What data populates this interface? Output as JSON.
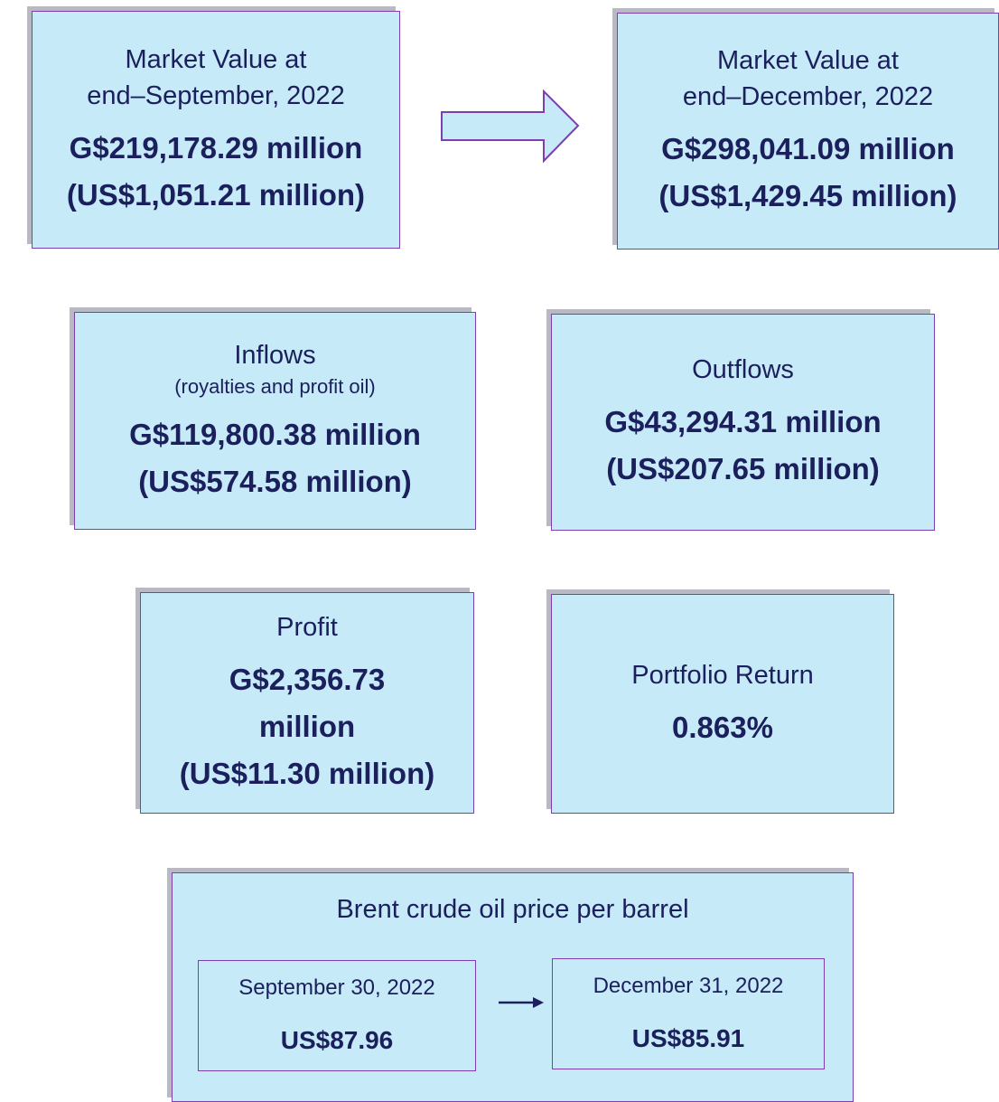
{
  "boxes": [
    {
      "title": [
        "Market Value at",
        "end–September, 2022"
      ],
      "values": [
        "G$219,178.29 million",
        "(US$1,051.21 million)"
      ]
    },
    {
      "title": [
        "Market Value at",
        "end–December, 2022"
      ],
      "values": [
        "G$298,041.09 million",
        "(US$1,429.45 million)"
      ]
    },
    {
      "title": [
        "Inflows"
      ],
      "subtitle": "(royalties and profit oil)",
      "values": [
        "G$119,800.38 million",
        "(US$574.58 million)"
      ]
    },
    {
      "title": [
        "Outflows"
      ],
      "values": [
        "G$43,294.31 million",
        "(US$207.65 million)"
      ]
    },
    {
      "title": [
        "Profit"
      ],
      "values": [
        "G$2,356.73 million",
        "(US$11.30 million)"
      ]
    },
    {
      "title": [
        "Portfolio Return"
      ],
      "values": [
        "0.863%"
      ]
    }
  ],
  "oil": {
    "title": "Brent crude oil price per barrel",
    "from": {
      "date": "September 30, 2022",
      "price": "US$87.96"
    },
    "to": {
      "date": "December 31, 2022",
      "price": "US$85.91"
    }
  }
}
